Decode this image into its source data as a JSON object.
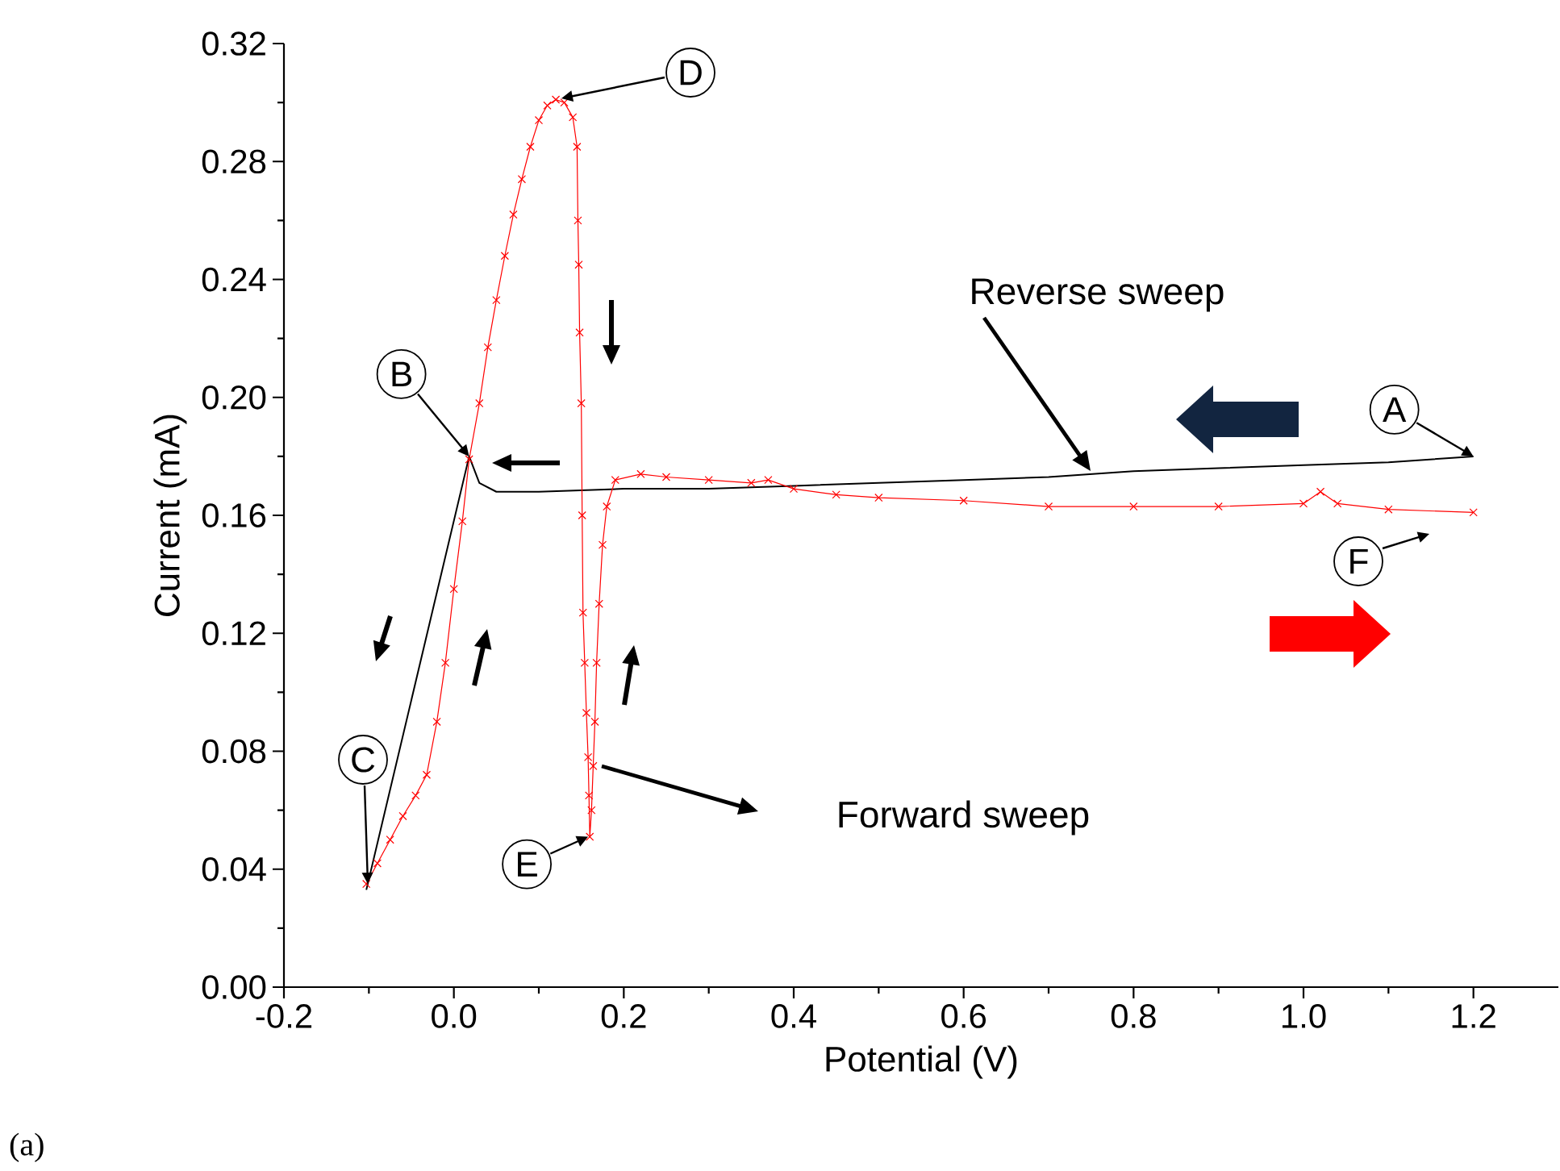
{
  "chart_data": {
    "type": "line",
    "xlabel": "Potential (V)",
    "ylabel": "Current (mA)",
    "xlim": [
      -0.2,
      1.3
    ],
    "xticks": [
      -0.2,
      {
        "value": 0,
        "label": "0.0"
      },
      0.2,
      0.4,
      0.6,
      0.8,
      {
        "value": 1,
        "label": "1.0"
      },
      1.2
    ],
    "ylim": [
      0,
      0.32
    ],
    "yticks": [
      {
        "value": 0,
        "label": "0.00"
      },
      0.04,
      0.08,
      0.12,
      0.16,
      {
        "value": 0.2,
        "label": "0.20"
      },
      0.24,
      0.28,
      0.32
    ],
    "grid": false,
    "series": [
      {
        "color": "#000000",
        "marker": "none",
        "x": [
          1.2,
          1.1,
          1.0,
          0.9,
          0.8,
          0.7,
          0.6,
          0.5,
          0.4,
          0.3,
          0.2,
          0.1,
          0.05,
          0.03,
          0.018,
          -0.103
        ],
        "values": [
          0.18,
          0.178,
          0.177,
          0.176,
          0.175,
          0.173,
          0.172,
          0.171,
          0.17,
          0.169,
          0.169,
          0.168,
          0.168,
          0.171,
          0.18,
          0.033
        ]
      },
      {
        "color": "#ff0000",
        "marker": "cross",
        "x": [
          -0.103,
          -0.09,
          -0.075,
          -0.06,
          -0.045,
          -0.032,
          -0.02,
          -0.01,
          0.0,
          0.01,
          0.018,
          0.03,
          0.04,
          0.05,
          0.06,
          0.07,
          0.08,
          0.09,
          0.1,
          0.11,
          0.12,
          0.13,
          0.14,
          0.145,
          0.146,
          0.147,
          0.148,
          0.15,
          0.151,
          0.152,
          0.154,
          0.156,
          0.158,
          0.159,
          0.16,
          0.162,
          0.164,
          0.166,
          0.168,
          0.171,
          0.175,
          0.18,
          0.19,
          0.22,
          0.25,
          0.3,
          0.35,
          0.37,
          0.4,
          0.45,
          0.5,
          0.6,
          0.7,
          0.8,
          0.9,
          1.0,
          1.02,
          1.04,
          1.1,
          1.2
        ],
        "values": [
          0.035,
          0.042,
          0.05,
          0.058,
          0.065,
          0.072,
          0.09,
          0.11,
          0.135,
          0.158,
          0.179,
          0.198,
          0.217,
          0.233,
          0.248,
          0.262,
          0.274,
          0.285,
          0.294,
          0.299,
          0.301,
          0.3,
          0.295,
          0.285,
          0.26,
          0.245,
          0.222,
          0.198,
          0.16,
          0.127,
          0.11,
          0.093,
          0.078,
          0.065,
          0.051,
          0.06,
          0.075,
          0.09,
          0.11,
          0.13,
          0.15,
          0.163,
          0.172,
          0.174,
          0.173,
          0.172,
          0.171,
          0.172,
          0.169,
          0.167,
          0.166,
          0.165,
          0.163,
          0.163,
          0.163,
          0.164,
          0.168,
          0.164,
          0.162,
          0.161
        ]
      }
    ],
    "annotations": [
      {
        "text": "A",
        "x": 1.2,
        "y": 0.18
      },
      {
        "text": "B",
        "x": 0.018,
        "y": 0.18
      },
      "C",
      "D",
      {
        "text": "E",
        "x": 0.158,
        "y": 0.051
      },
      "F",
      "Reverse sweep",
      "Forward sweep",
      "(a)"
    ]
  }
}
